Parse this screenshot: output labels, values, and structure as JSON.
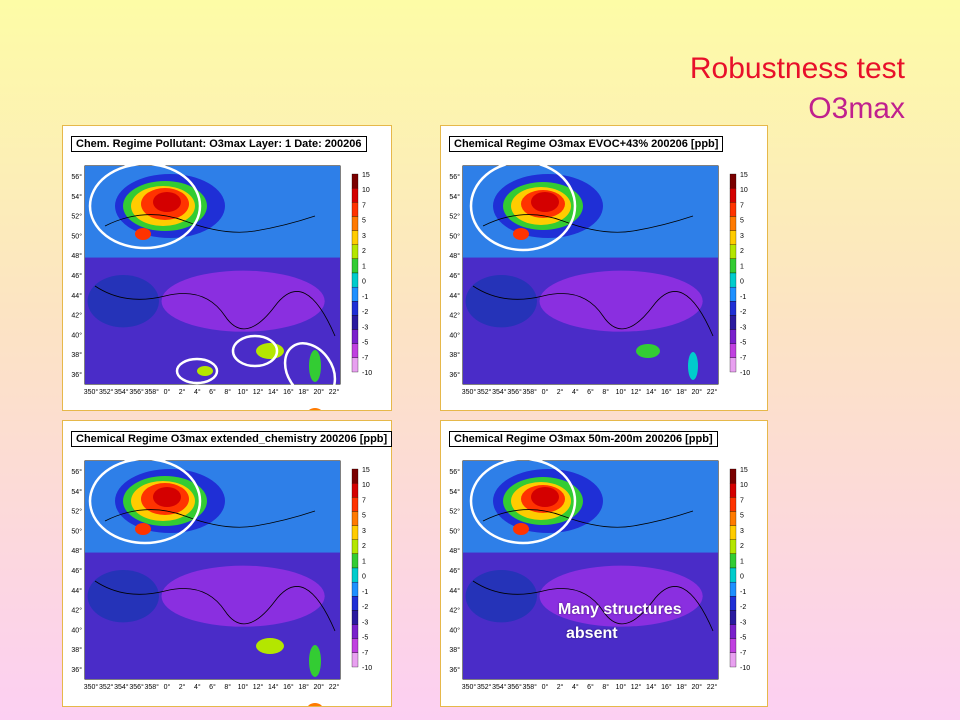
{
  "slide": {
    "title_line1": "Robustness test",
    "title_line2": "O3max",
    "title_color1": "#e8102a",
    "title_color2": "#c0208e"
  },
  "chart_data": [
    {
      "type": "heatmap",
      "title": "Chem. Regime Pollutant: O3max Layer: 1 Date: 200206",
      "x_ticks": [
        "350°",
        "352°",
        "354°",
        "356°",
        "358°",
        "0°",
        "2°",
        "4°",
        "6°",
        "8°",
        "10°",
        "12°",
        "14°",
        "16°",
        "18°",
        "20°",
        "22°"
      ],
      "y_ticks": [
        "56°",
        "54°",
        "52°",
        "50°",
        "48°",
        "46°",
        "44°",
        "42°",
        "40°",
        "38°",
        "36°"
      ],
      "colorbar_ticks": [
        "15",
        "10",
        "7",
        "5",
        "3",
        "2",
        "1",
        "0",
        "-1",
        "-2",
        "-3",
        "-5",
        "-7",
        "-10"
      ],
      "highlights": 6
    },
    {
      "type": "heatmap",
      "title": "Chemical Regime O3max EVOC+43% 200206 [ppb]",
      "x_ticks": [
        "350°",
        "352°",
        "354°",
        "356°",
        "358°",
        "0°",
        "2°",
        "4°",
        "6°",
        "8°",
        "10°",
        "12°",
        "14°",
        "16°",
        "18°",
        "20°",
        "22°"
      ],
      "y_ticks": [
        "56°",
        "54°",
        "52°",
        "50°",
        "48°",
        "46°",
        "44°",
        "42°",
        "40°",
        "38°",
        "36°"
      ],
      "colorbar_ticks": [
        "15",
        "10",
        "7",
        "5",
        "3",
        "2",
        "1",
        "0",
        "-1",
        "-2",
        "-3",
        "-5",
        "-7",
        "-10"
      ],
      "highlights": 1
    },
    {
      "type": "heatmap",
      "title": "Chemical Regime O3max extended_chemistry 200206 [ppb]",
      "x_ticks": [
        "350°",
        "352°",
        "354°",
        "356°",
        "358°",
        "0°",
        "2°",
        "4°",
        "6°",
        "8°",
        "10°",
        "12°",
        "14°",
        "16°",
        "18°",
        "20°",
        "22°"
      ],
      "y_ticks": [
        "56°",
        "54°",
        "52°",
        "50°",
        "48°",
        "46°",
        "44°",
        "42°",
        "40°",
        "38°",
        "36°"
      ],
      "colorbar_ticks": [
        "15",
        "10",
        "7",
        "5",
        "3",
        "2",
        "1",
        "0",
        "-1",
        "-2",
        "-3",
        "-5",
        "-7",
        "-10"
      ],
      "highlights": 1
    },
    {
      "type": "heatmap",
      "title": "Chemical Regime O3max 50m-200m 200206 [ppb]",
      "x_ticks": [
        "350°",
        "352°",
        "354°",
        "356°",
        "358°",
        "0°",
        "2°",
        "4°",
        "6°",
        "8°",
        "10°",
        "12°",
        "14°",
        "16°",
        "18°",
        "20°",
        "22°"
      ],
      "y_ticks": [
        "56°",
        "54°",
        "52°",
        "50°",
        "48°",
        "46°",
        "44°",
        "42°",
        "40°",
        "38°",
        "36°"
      ],
      "colorbar_ticks": [
        "15",
        "10",
        "7",
        "5",
        "3",
        "2",
        "1",
        "0",
        "-1",
        "-2",
        "-3",
        "-5",
        "-7",
        "-10"
      ],
      "highlights": 1
    }
  ],
  "colorbar_colors": [
    "#7a0000",
    "#d40000",
    "#ff3300",
    "#ff7a00",
    "#ffcc00",
    "#b4e600",
    "#33cc33",
    "#00cccc",
    "#1e90ff",
    "#1f2fd6",
    "#2a1aa0",
    "#7a20cc",
    "#c040e0",
    "#e8a0f0"
  ],
  "annotation": {
    "line1": "Many structures",
    "line2": "absent"
  }
}
